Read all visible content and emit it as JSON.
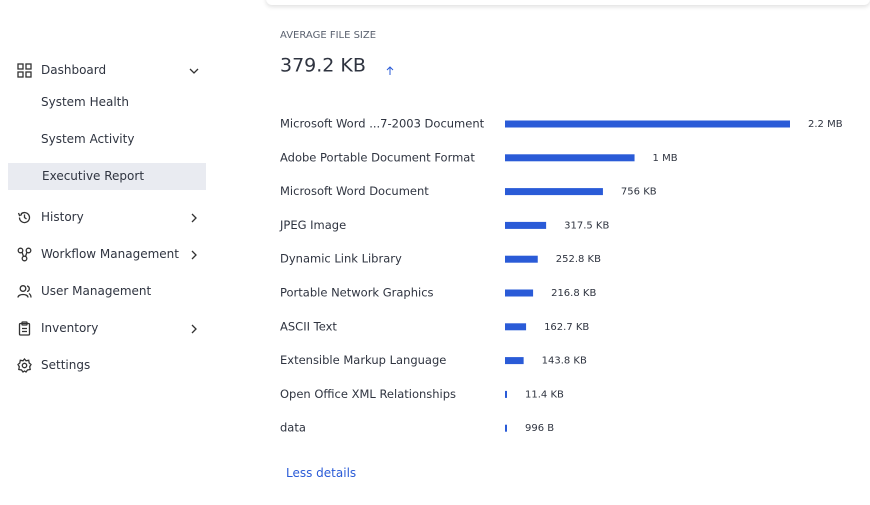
{
  "nav": [
    "Dashboard",
    "History",
    "Workflow Management",
    "User Management",
    "Inventory",
    "Settings"
  ],
  "subnav": [
    "System Health",
    "System Activity",
    "Executive Report"
  ],
  "stat": {
    "label": "AVERAGE FILE SIZE",
    "value": "379.2 KB"
  },
  "chart_data": {
    "type": "bar",
    "orientation": "horizontal",
    "color": "#2a5bd7",
    "categories": [
      "Microsoft Word ...7-2003 Document",
      "Adobe Portable Document Format",
      "Microsoft Word Document",
      "JPEG Image",
      "Dynamic Link Library",
      "Portable Network Graphics",
      "ASCII Text",
      "Extensible Markup Language",
      "Open Office XML Relationships",
      "data"
    ],
    "values": [
      2200000,
      1000000,
      756000,
      317500,
      252800,
      216800,
      162700,
      143800,
      11400,
      996
    ],
    "value_labels": [
      "2.2 MB",
      "1 MB",
      "756 KB",
      "317.5 KB",
      "252.8 KB",
      "216.8 KB",
      "162.7 KB",
      "143.8 KB",
      "11.4 KB",
      "996 B"
    ]
  },
  "link": "Less details"
}
